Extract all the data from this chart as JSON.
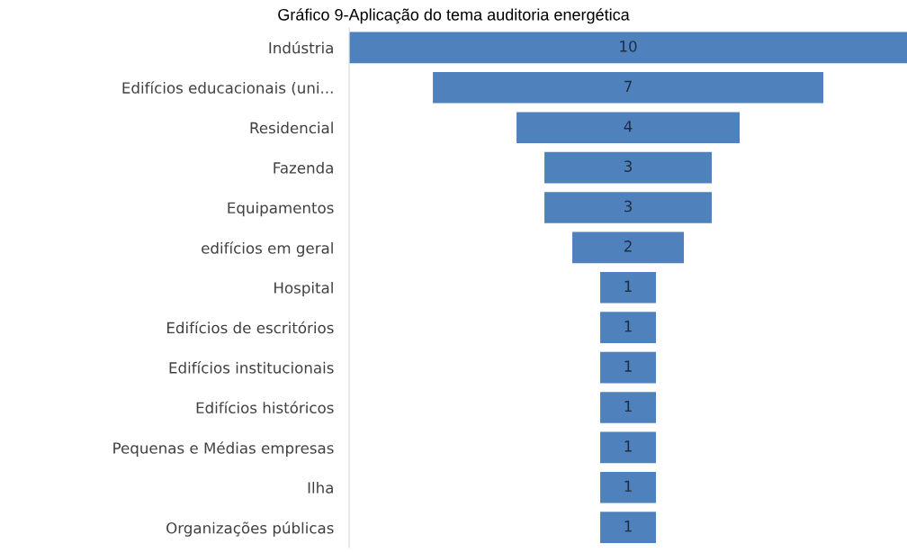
{
  "chart_data": {
    "type": "other",
    "title": "Gráfico 9-Aplicação do tema auditoria energética",
    "categories": [
      "Indústria",
      "Edifícios educacionais (uni...",
      "Residencial",
      "Fazenda",
      "Equipamentos",
      "edifícios em geral",
      "Hospital",
      "Edifícios de escritórios",
      "Edifícios institucionais",
      "Edifícios históricos",
      "Pequenas e Médias empresas",
      "Ilha",
      "Organizações públicas"
    ],
    "values": [
      10,
      7,
      4,
      3,
      3,
      2,
      1,
      1,
      1,
      1,
      1,
      1,
      1
    ],
    "color": "#4f81bd",
    "data_labels": true
  }
}
